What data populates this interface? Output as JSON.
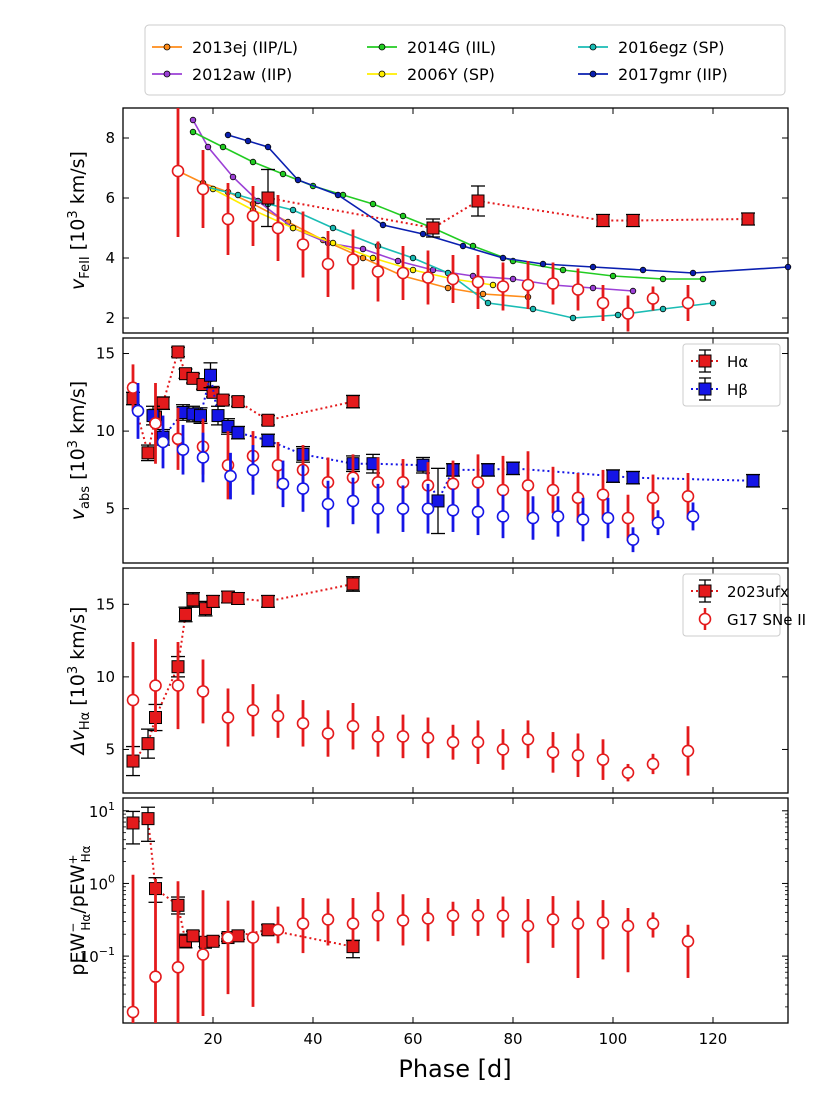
{
  "chart_data": [
    {
      "type": "line",
      "panel": "fe-velocity",
      "ylabel": "v_FeII [10^3 km/s]",
      "ylabel_main": "v",
      "ylabel_sub": "FeII",
      "ylabel_rest": " [10",
      "ylabel_sup": "3",
      "ylabel_end": " km/s]",
      "yscale": "linear",
      "ylim": [
        1.5,
        9.0
      ],
      "yticks": [
        2,
        4,
        6,
        8
      ],
      "legend": "top (outside)",
      "series": [
        {
          "name": "2013ej (IIP/L)",
          "color": "#ff8c1a",
          "x": [
            13,
            18,
            23,
            28,
            35,
            42,
            50,
            58,
            67,
            74,
            83
          ],
          "y": [
            6.9,
            6.5,
            6.2,
            5.8,
            5.2,
            4.6,
            4.0,
            3.4,
            3.0,
            2.8,
            2.7
          ]
        },
        {
          "name": "2012aw (IIP)",
          "color": "#9b40d6",
          "x": [
            16,
            19,
            24,
            29,
            36,
            43,
            50,
            57,
            64,
            72,
            80,
            88,
            96,
            104
          ],
          "y": [
            8.6,
            7.7,
            6.7,
            5.9,
            5.0,
            4.5,
            4.3,
            3.9,
            3.6,
            3.4,
            3.3,
            3.1,
            3.0,
            2.9
          ]
        },
        {
          "name": "2014G (IIL)",
          "color": "#22cc22",
          "x": [
            16,
            22,
            28,
            34,
            40,
            46,
            52,
            58,
            64,
            72,
            80,
            90,
            100,
            110,
            118
          ],
          "y": [
            8.2,
            7.7,
            7.2,
            6.8,
            6.4,
            6.1,
            5.8,
            5.4,
            5.0,
            4.4,
            3.9,
            3.6,
            3.4,
            3.3,
            3.3
          ]
        },
        {
          "name": "2006Y (SP)",
          "color": "#ffee00",
          "x": [
            20,
            28,
            36,
            44,
            52,
            60,
            68,
            76
          ],
          "y": [
            6.3,
            5.6,
            5.0,
            4.5,
            4.0,
            3.6,
            3.3,
            3.1
          ]
        },
        {
          "name": "2016egz (SP)",
          "color": "#1abcb4",
          "x": [
            18,
            25,
            31,
            36,
            44,
            53,
            60,
            67,
            75,
            84,
            92,
            101,
            110,
            120
          ],
          "y": [
            6.4,
            6.1,
            5.8,
            5.6,
            5.0,
            4.4,
            4.0,
            3.5,
            2.5,
            2.3,
            2.0,
            2.1,
            2.3,
            2.5
          ]
        },
        {
          "name": "2017gmr (IIP)",
          "color": "#0a1fb0",
          "x": [
            23,
            27,
            31,
            37,
            45,
            54,
            62,
            70,
            78,
            86,
            96,
            106,
            116,
            135
          ],
          "y": [
            8.1,
            7.9,
            7.7,
            6.6,
            6.1,
            5.1,
            4.8,
            4.4,
            4.0,
            3.8,
            3.7,
            3.6,
            3.5,
            3.7
          ]
        },
        {
          "name": "2023ufx",
          "color": "#e41a1c",
          "kind": "filled-square",
          "x": [
            31,
            64,
            73,
            98,
            104,
            127
          ],
          "y": [
            6.0,
            5.0,
            5.9,
            5.25,
            5.25,
            5.3
          ],
          "err": [
            0.95,
            0.3,
            0.5,
            0.2,
            0.2,
            0.2
          ]
        },
        {
          "name": "G17 SNe II",
          "color": "#e41a1c",
          "kind": "open-circle",
          "x": [
            13,
            18,
            23,
            28,
            33,
            38,
            43,
            48,
            53,
            58,
            63,
            68,
            73,
            78,
            83,
            88,
            93,
            98,
            103,
            108,
            115
          ],
          "y": [
            6.9,
            6.3,
            5.3,
            5.4,
            5.0,
            4.45,
            3.8,
            3.95,
            3.55,
            3.5,
            3.35,
            3.3,
            3.2,
            3.05,
            3.1,
            3.15,
            2.95,
            2.5,
            2.15,
            2.65,
            2.5
          ],
          "err": [
            2.2,
            1.3,
            1.2,
            1.0,
            1.1,
            1.1,
            1.1,
            1.0,
            1.0,
            0.9,
            0.9,
            0.8,
            0.9,
            0.8,
            0.8,
            0.7,
            0.7,
            0.6,
            0.6,
            0.4,
            0.6
          ]
        }
      ]
    },
    {
      "type": "scatter",
      "panel": "absorption-velocity",
      "ylabel": "v_abs [10^3 km/s]",
      "ylabel_main": "v",
      "ylabel_sub": "abs",
      "ylabel_rest": " [10",
      "ylabel_sup": "3",
      "ylabel_end": " km/s]",
      "yscale": "linear",
      "ylim": [
        1.5,
        16.0
      ],
      "yticks": [
        5,
        10,
        15
      ],
      "legend": "top-right",
      "legend_entries": [
        "Hα",
        "Hβ"
      ],
      "series": [
        {
          "name": "Hα (2023ufx)",
          "color": "#e41a1c",
          "kind": "filled-square",
          "linestyle": "dotted",
          "x": [
            4,
            7,
            8.5,
            10,
            13,
            14.5,
            16,
            18,
            20,
            22,
            25,
            31,
            48
          ],
          "y": [
            12.1,
            8.6,
            10.9,
            11.8,
            15.1,
            13.7,
            13.4,
            13.0,
            12.5,
            12.0,
            11.9,
            10.7,
            11.9
          ],
          "err": [
            0.4,
            0.5,
            0.5,
            0.4,
            0.3,
            0.3,
            0.3,
            0.3,
            0.3,
            0.3,
            0.3,
            0.3,
            0.4
          ]
        },
        {
          "name": "Hβ (2023ufx)",
          "color": "#1515e6",
          "kind": "filled-square",
          "linestyle": "dotted",
          "x": [
            8,
            10,
            14,
            16,
            17.5,
            19.5,
            21,
            23,
            25,
            31,
            38,
            48,
            52,
            62,
            65,
            68,
            75,
            80,
            100,
            104,
            128
          ],
          "y": [
            11.0,
            9.6,
            11.2,
            11.1,
            11.0,
            13.6,
            11.0,
            10.3,
            9.9,
            9.4,
            8.5,
            7.9,
            7.9,
            7.8,
            5.5,
            7.5,
            7.5,
            7.6,
            7.1,
            7.0,
            6.8
          ],
          "err": [
            0.6,
            0.5,
            0.5,
            0.5,
            0.5,
            0.8,
            0.6,
            0.5,
            0.4,
            0.4,
            0.5,
            0.5,
            0.6,
            0.5,
            2.1,
            0.4,
            0.4,
            0.4,
            0.4,
            0.4,
            0.4
          ]
        },
        {
          "name": "G17 Hα",
          "color": "#e41a1c",
          "kind": "open-circle",
          "x": [
            4,
            8.5,
            13,
            18,
            23,
            28,
            33,
            38,
            43,
            48,
            53,
            58,
            63,
            68,
            73,
            78,
            83,
            88,
            93,
            98,
            103,
            108,
            115
          ],
          "y": [
            12.8,
            10.5,
            9.5,
            9.0,
            7.8,
            8.4,
            7.8,
            7.5,
            6.7,
            7.0,
            6.7,
            6.7,
            6.5,
            6.6,
            6.7,
            6.2,
            6.5,
            6.2,
            5.7,
            5.9,
            4.4,
            5.7,
            5.8
          ],
          "err": [
            1.5,
            2.6,
            2.0,
            1.8,
            2.2,
            1.6,
            1.5,
            1.6,
            1.6,
            1.5,
            1.6,
            1.5,
            1.5,
            1.5,
            1.8,
            2.2,
            2.2,
            1.5,
            1.6,
            1.6,
            1.5,
            1.5,
            1.5
          ]
        },
        {
          "name": "G17 Hβ",
          "color": "#1515e6",
          "kind": "open-circle",
          "x": [
            5,
            10,
            14,
            18,
            23.5,
            28,
            34,
            38,
            43,
            48,
            53,
            58,
            63,
            68,
            73,
            78,
            84,
            89,
            94,
            99,
            104,
            109,
            116
          ],
          "y": [
            11.3,
            9.3,
            8.8,
            8.3,
            7.1,
            7.5,
            6.6,
            6.3,
            5.3,
            5.5,
            5.0,
            5.0,
            5.0,
            4.9,
            4.8,
            4.5,
            4.4,
            4.5,
            4.3,
            4.4,
            3.0,
            4.1,
            4.5
          ],
          "err": [
            1.8,
            1.7,
            1.6,
            1.6,
            1.5,
            1.6,
            1.5,
            1.5,
            1.5,
            1.5,
            1.6,
            1.5,
            1.6,
            1.4,
            1.5,
            1.4,
            1.4,
            1.3,
            1.4,
            1.3,
            0.8,
            0.8,
            0.9
          ]
        }
      ]
    },
    {
      "type": "scatter",
      "panel": "halpha-width",
      "ylabel": "Δv_Hα [10^3 km/s]",
      "ylabel_main": "Δv",
      "ylabel_sub": "Hα",
      "ylabel_rest": " [10",
      "ylabel_sup": "3",
      "ylabel_end": " km/s]",
      "yscale": "linear",
      "ylim": [
        2.0,
        17.5
      ],
      "yticks": [
        5,
        10,
        15
      ],
      "legend": "top-right",
      "legend_entries": [
        "2023ufx",
        "G17 SNe II"
      ],
      "series": [
        {
          "name": "2023ufx",
          "color": "#e41a1c",
          "kind": "filled-square",
          "linestyle": "dotted",
          "x": [
            4,
            7,
            8.5,
            13,
            14.5,
            16,
            18.5,
            20,
            23,
            25,
            31,
            48
          ],
          "y": [
            4.2,
            5.4,
            7.2,
            10.7,
            14.3,
            15.3,
            14.7,
            15.2,
            15.5,
            15.4,
            15.2,
            16.4
          ],
          "err": [
            1.0,
            1.0,
            0.9,
            0.7,
            0.5,
            0.5,
            0.5,
            0.4,
            0.4,
            0.4,
            0.4,
            0.5
          ]
        },
        {
          "name": "G17 SNe II",
          "color": "#e41a1c",
          "kind": "open-circle",
          "x": [
            4,
            8.5,
            13,
            18,
            23,
            28,
            33,
            38,
            43,
            48,
            53,
            58,
            63,
            68,
            73,
            78,
            83,
            88,
            93,
            98,
            103,
            108,
            115
          ],
          "y": [
            8.4,
            9.4,
            9.4,
            9.0,
            7.2,
            7.7,
            7.3,
            6.8,
            6.1,
            6.6,
            5.9,
            5.9,
            5.8,
            5.5,
            5.5,
            5.0,
            5.7,
            4.8,
            4.6,
            4.3,
            3.4,
            4.0,
            4.9
          ],
          "err": [
            4.0,
            3.2,
            3.0,
            2.2,
            2.0,
            1.8,
            1.5,
            1.6,
            1.6,
            1.6,
            1.4,
            1.5,
            1.4,
            1.2,
            1.5,
            1.4,
            1.3,
            1.4,
            1.5,
            1.4,
            0.6,
            0.7,
            1.7
          ]
        }
      ]
    },
    {
      "type": "scatter",
      "panel": "pew-ratio",
      "ylabel": "pEW−Hα / pEW+Hα",
      "yscale": "log",
      "ylim": [
        0.012,
        15
      ],
      "yticks": [
        0.1,
        1,
        10
      ],
      "ytick_labels": [
        [
          "10",
          "−1"
        ],
        [
          "10",
          "0"
        ],
        [
          "10",
          "1"
        ]
      ],
      "series": [
        {
          "name": "2023ufx",
          "color": "#e41a1c",
          "kind": "filled-square",
          "linestyle": "dotted",
          "x": [
            4,
            7,
            8.5,
            13,
            14.5,
            16,
            18.5,
            20,
            23,
            25,
            31,
            48
          ],
          "y": [
            6.8,
            7.8,
            0.85,
            0.5,
            0.16,
            0.19,
            0.155,
            0.16,
            0.18,
            0.19,
            0.23,
            0.135
          ],
          "err": [
            [
              3.3,
              3.0
            ],
            [
              4.0,
              3.4
            ],
            [
              0.3,
              0.35
            ],
            [
              0.12,
              0.15
            ],
            [
              0.03,
              0.04
            ],
            [
              0.025,
              0.03
            ],
            [
              0.02,
              0.025
            ],
            [
              0.02,
              0.025
            ],
            [
              0.02,
              0.025
            ],
            [
              0.02,
              0.025
            ],
            [
              0.03,
              0.04
            ],
            [
              0.04,
              0.03
            ]
          ]
        },
        {
          "name": "G17 SNe II",
          "color": "#e41a1c",
          "kind": "open-circle",
          "x": [
            4,
            8.5,
            13,
            18,
            23,
            28,
            33,
            38,
            43,
            48,
            53,
            58,
            63,
            68,
            73,
            78,
            83,
            88,
            93,
            98,
            103,
            108,
            115
          ],
          "y": [
            0.017,
            0.052,
            0.07,
            0.105,
            0.18,
            0.18,
            0.23,
            0.28,
            0.32,
            0.28,
            0.36,
            0.31,
            0.33,
            0.36,
            0.36,
            0.36,
            0.26,
            0.32,
            0.28,
            0.29,
            0.26,
            0.28,
            0.16
          ],
          "err": [
            [
              0.005,
              1.3
            ],
            [
              0.04,
              1.1
            ],
            [
              0.06,
              1.0
            ],
            [
              0.09,
              0.7
            ],
            [
              0.15,
              0.4
            ],
            [
              0.16,
              0.4
            ],
            [
              0.08,
              0.25
            ],
            [
              0.17,
              0.35
            ],
            [
              0.18,
              0.3
            ],
            [
              0.15,
              0.35
            ],
            [
              0.2,
              0.4
            ],
            [
              0.17,
              0.4
            ],
            [
              0.17,
              0.3
            ],
            [
              0.17,
              0.2
            ],
            [
              0.17,
              0.25
            ],
            [
              0.18,
              0.3
            ],
            [
              0.18,
              0.35
            ],
            [
              0.19,
              0.35
            ],
            [
              0.23,
              0.3
            ],
            [
              0.2,
              0.3
            ],
            [
              0.2,
              0.2
            ],
            [
              0.1,
              0.12
            ],
            [
              0.11,
              0.11
            ]
          ]
        }
      ]
    }
  ],
  "xaxis": {
    "label": "Phase [d]",
    "xlim": [
      2,
      135
    ],
    "ticks": [
      20,
      40,
      60,
      80,
      100,
      120
    ]
  },
  "top_legend": {
    "entries": [
      "2013ej (IIP/L)",
      "2014G (IIL)",
      "2016egz (SP)",
      "2012aw (IIP)",
      "2006Y (SP)",
      "2017gmr (IIP)"
    ]
  }
}
